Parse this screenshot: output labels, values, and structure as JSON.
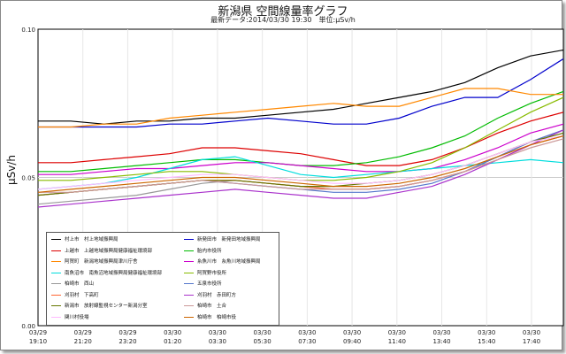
{
  "chart_data": {
    "type": "line",
    "title": "新潟県 空間線量率グラフ",
    "subtitle": "最新データ:2014/03/30 19:30　単位:μSv/h",
    "ylabel": "μSv/h",
    "xlabel": "",
    "ylim": [
      0.0,
      0.1
    ],
    "yticks": [
      "0.00",
      "0.05",
      "0.10"
    ],
    "grid": true,
    "legend_position": "bottom-left",
    "x_ticks": [
      {
        "date": "03/29",
        "time": "19:10"
      },
      {
        "date": "03/29",
        "time": "21:20"
      },
      {
        "date": "03/29",
        "time": "23:20"
      },
      {
        "date": "03/30",
        "time": "01:20"
      },
      {
        "date": "03/30",
        "time": "03:30"
      },
      {
        "date": "03/30",
        "time": "05:30"
      },
      {
        "date": "03/30",
        "time": "07:30"
      },
      {
        "date": "03/30",
        "time": "09:40"
      },
      {
        "date": "03/30",
        "time": "11:40"
      },
      {
        "date": "03/30",
        "time": "13:40"
      },
      {
        "date": "03/30",
        "time": "15:40"
      },
      {
        "date": "03/30",
        "time": "17:40"
      }
    ],
    "series": [
      {
        "name": "村上市　村上地域振興局",
        "color": "#000000",
        "values": [
          0.069,
          0.069,
          0.068,
          0.069,
          0.069,
          0.07,
          0.07,
          0.071,
          0.072,
          0.073,
          0.075,
          0.077,
          0.079,
          0.082,
          0.087,
          0.091,
          0.093
        ]
      },
      {
        "name": "新発田市　新発田地域振興局",
        "color": "#0000cc",
        "values": [
          0.067,
          0.067,
          0.067,
          0.067,
          0.068,
          0.068,
          0.069,
          0.07,
          0.069,
          0.068,
          0.068,
          0.07,
          0.074,
          0.077,
          0.077,
          0.083,
          0.09
        ]
      },
      {
        "name": "上越市　上越地域振興局健康福祉環境部",
        "color": "#dd0000",
        "values": [
          0.055,
          0.055,
          0.056,
          0.057,
          0.058,
          0.06,
          0.06,
          0.059,
          0.058,
          0.056,
          0.054,
          0.054,
          0.056,
          0.06,
          0.065,
          0.069,
          0.072
        ]
      },
      {
        "name": "胎内市役所",
        "color": "#00bb00",
        "values": [
          0.052,
          0.052,
          0.053,
          0.054,
          0.055,
          0.056,
          0.056,
          0.055,
          0.054,
          0.054,
          0.055,
          0.057,
          0.06,
          0.064,
          0.07,
          0.075,
          0.079
        ]
      },
      {
        "name": "阿賀町　新潟地域振興局津川庁舎",
        "color": "#ff8800",
        "values": [
          0.067,
          0.067,
          0.068,
          0.068,
          0.07,
          0.071,
          0.072,
          0.073,
          0.074,
          0.075,
          0.074,
          0.074,
          0.077,
          0.08,
          0.08,
          0.078,
          0.078
        ]
      },
      {
        "name": "糸魚川市　糸魚川地域振興局",
        "color": "#cc00cc",
        "values": [
          0.051,
          0.051,
          0.052,
          0.053,
          0.053,
          0.054,
          0.055,
          0.055,
          0.054,
          0.053,
          0.052,
          0.052,
          0.053,
          0.056,
          0.06,
          0.065,
          0.068
        ]
      },
      {
        "name": "南魚沼市　南魚沼地域振興局健康福祉環境部",
        "color": "#00dddd",
        "values": [
          0.046,
          0.047,
          0.048,
          0.05,
          0.053,
          0.056,
          0.057,
          0.054,
          0.051,
          0.05,
          0.051,
          0.052,
          0.053,
          0.054,
          0.055,
          0.056,
          0.055
        ]
      },
      {
        "name": "阿賀野市役所",
        "color": "#88bb00",
        "values": [
          0.049,
          0.049,
          0.05,
          0.051,
          0.052,
          0.052,
          0.051,
          0.05,
          0.049,
          0.049,
          0.05,
          0.052,
          0.055,
          0.06,
          0.066,
          0.072,
          0.077
        ]
      },
      {
        "name": "柏崎市　西山",
        "color": "#999999",
        "values": [
          0.041,
          0.042,
          0.043,
          0.044,
          0.046,
          0.048,
          0.049,
          0.048,
          0.047,
          0.046,
          0.046,
          0.047,
          0.049,
          0.052,
          0.057,
          0.062,
          0.066
        ]
      },
      {
        "name": "五泉市役所",
        "color": "#5577cc",
        "values": [
          0.044,
          0.045,
          0.046,
          0.047,
          0.048,
          0.049,
          0.048,
          0.047,
          0.046,
          0.045,
          0.045,
          0.046,
          0.048,
          0.052,
          0.057,
          0.062,
          0.066
        ]
      },
      {
        "name": "刈羽村　下高町",
        "color": "#ff6633",
        "values": [
          0.044,
          0.045,
          0.046,
          0.047,
          0.048,
          0.049,
          0.049,
          0.048,
          0.047,
          0.046,
          0.046,
          0.047,
          0.049,
          0.052,
          0.056,
          0.061,
          0.064
        ]
      },
      {
        "name": "刈羽村　赤田町方",
        "color": "#aa33cc",
        "values": [
          0.04,
          0.041,
          0.042,
          0.043,
          0.044,
          0.045,
          0.046,
          0.045,
          0.044,
          0.043,
          0.043,
          0.045,
          0.047,
          0.051,
          0.056,
          0.061,
          0.066
        ]
      },
      {
        "name": "新潟市　放射線監視センター新潟分室",
        "color": "#667700",
        "values": [
          0.044,
          0.045,
          0.046,
          0.047,
          0.048,
          0.049,
          0.049,
          0.048,
          0.047,
          0.047,
          0.048,
          0.049,
          0.051,
          0.054,
          0.058,
          0.062,
          0.065
        ]
      },
      {
        "name": "柏崎市　土合",
        "color": "#cc9999",
        "values": [
          0.045,
          0.045,
          0.046,
          0.047,
          0.048,
          0.049,
          0.048,
          0.047,
          0.046,
          0.046,
          0.046,
          0.047,
          0.049,
          0.052,
          0.056,
          0.06,
          0.063
        ]
      },
      {
        "name": "関川村役場",
        "color": "#ffbbff",
        "values": [
          0.046,
          0.047,
          0.048,
          0.049,
          0.05,
          0.051,
          0.051,
          0.05,
          0.049,
          0.048,
          0.048,
          0.049,
          0.051,
          0.054,
          0.058,
          0.062,
          0.064
        ]
      },
      {
        "name": "柏崎市　柏崎市役",
        "color": "#cc6600",
        "values": [
          0.045,
          0.046,
          0.047,
          0.048,
          0.049,
          0.05,
          0.05,
          0.049,
          0.048,
          0.047,
          0.047,
          0.048,
          0.05,
          0.053,
          0.057,
          0.061,
          0.064
        ]
      }
    ]
  }
}
